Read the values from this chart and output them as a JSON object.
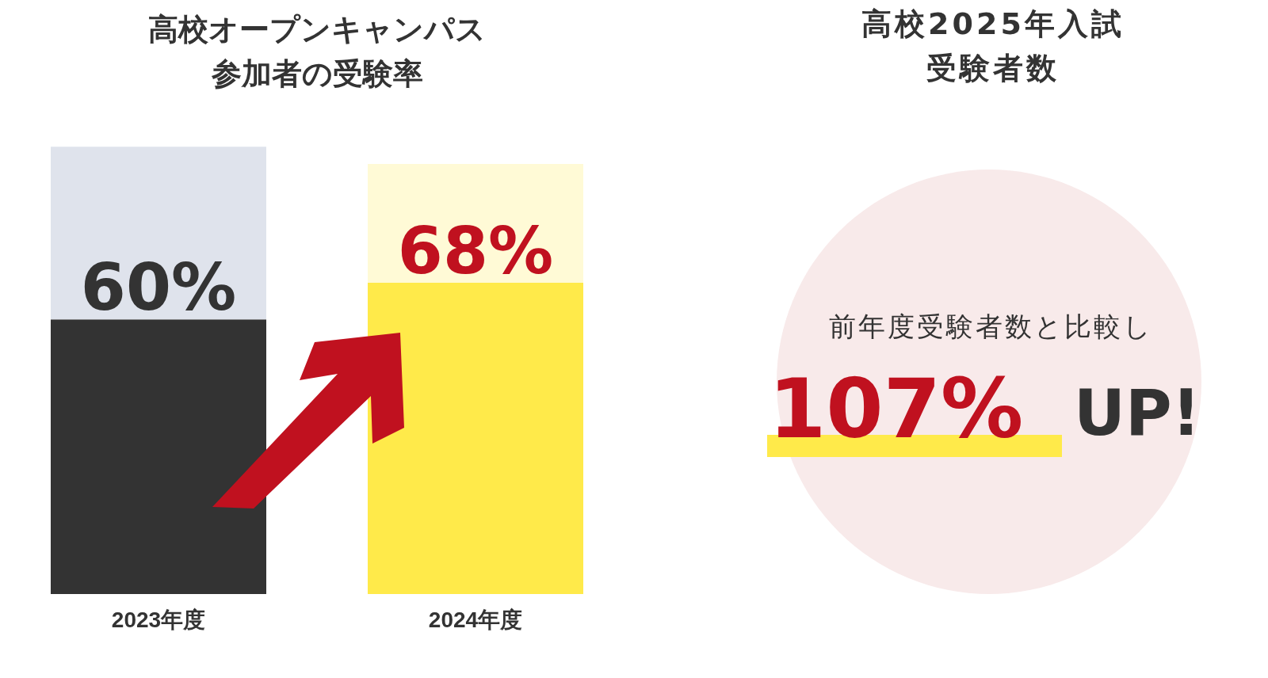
{
  "chart_data": [
    {
      "type": "bar",
      "title": "高校オープンキャンパス参加者の受験率",
      "categories": [
        "2023年度",
        "2024年度"
      ],
      "values": [
        60,
        68
      ],
      "colors": [
        "#333333",
        "#ffea4a"
      ],
      "value_labels": [
        "60%",
        "68%"
      ]
    },
    {
      "type": "other",
      "title": "高校2025年入試受験者数",
      "annotations": [
        "前年度受験者数と比較し",
        "107%",
        "UP!"
      ]
    }
  ]
}
